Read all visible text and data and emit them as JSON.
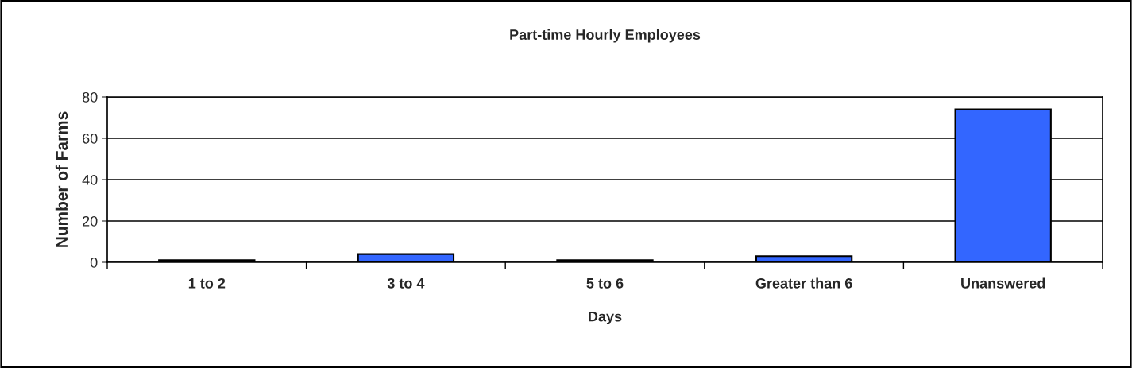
{
  "chart_data": {
    "type": "bar",
    "title": "Part-time Hourly Employees",
    "xlabel": "Days",
    "ylabel": "Number of Farms",
    "categories": [
      "1 to 2",
      "3 to 4",
      "5 to 6",
      "Greater than 6",
      "Unanswered"
    ],
    "values": [
      1,
      4,
      1,
      3,
      74
    ],
    "color": "#3366ff",
    "ylim": [
      0,
      80
    ],
    "yticks": [
      0,
      20,
      40,
      60,
      80
    ],
    "grid": "y"
  }
}
